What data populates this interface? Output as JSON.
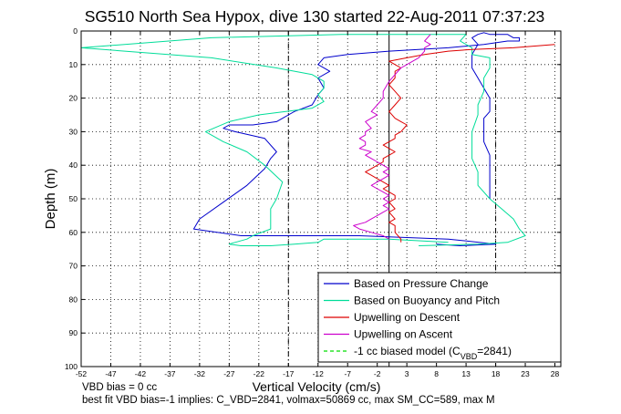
{
  "chart_data": {
    "type": "line",
    "title": "SG510 North Sea Hypox, dive 130 started 22-Aug-2011 07:37:23",
    "xlabel": "Vertical Velocity (cm/s)",
    "ylabel": "Depth (m)",
    "xlim": [
      -52,
      29
    ],
    "ylim": [
      0,
      100
    ],
    "y_reversed": true,
    "grid": true,
    "x_ticks": [
      -52,
      -47,
      -42,
      -37,
      -32,
      -27,
      -22,
      -17,
      -12,
      -7,
      -2,
      3,
      8,
      13,
      18,
      23,
      28
    ],
    "y_ticks": [
      0,
      10,
      20,
      30,
      40,
      50,
      60,
      70,
      80,
      90,
      100
    ],
    "vertical_lines": [
      {
        "x": -17,
        "style": "dashdot"
      },
      {
        "x": 18,
        "style": "dashdot"
      },
      {
        "x": 0,
        "style": "solid"
      }
    ],
    "legend_position": "bottom-right",
    "series": [
      {
        "name": "Based on Pressure Change",
        "color": "#0000cc",
        "x": [
          8,
          12,
          18,
          10,
          -5,
          -25,
          -33,
          -32,
          -28,
          -24,
          -21,
          -20,
          -19,
          -21,
          -26,
          -28,
          -27,
          -23,
          -19,
          -17,
          -16,
          -13,
          -12,
          -11,
          -12,
          -10,
          -12,
          -11,
          -7,
          0,
          10,
          16,
          20,
          22,
          22,
          21,
          20,
          19,
          17,
          16,
          15,
          14,
          15,
          14,
          14,
          14,
          15,
          16,
          17,
          17,
          17,
          16,
          16,
          16,
          17,
          17,
          17
        ],
        "y": [
          63.5,
          64,
          63.5,
          62,
          61,
          61,
          59,
          56,
          51,
          46,
          41,
          38,
          36,
          32,
          30,
          29,
          28,
          28,
          27,
          25,
          24,
          22,
          19,
          17,
          14,
          12,
          10,
          8,
          7,
          6,
          5,
          4,
          3,
          3,
          2,
          2,
          1,
          1,
          1,
          0.5,
          1,
          2,
          4,
          7,
          8,
          11,
          14,
          17,
          20,
          21,
          24,
          26,
          30,
          33,
          37,
          43,
          50
        ]
      },
      {
        "name": "Based on Buoyancy and Pitch",
        "color": "#00dd99",
        "x": [
          5,
          15,
          20,
          23,
          22,
          21,
          19,
          17,
          15,
          15,
          14,
          14,
          14,
          15,
          15,
          16,
          16,
          17,
          17,
          17,
          14,
          14,
          12,
          13,
          -8,
          -30,
          -52,
          -30,
          -19,
          -13,
          -11,
          -11,
          -12,
          -11,
          -13,
          -22,
          -27,
          -31,
          -28,
          -24,
          -21,
          -18,
          -19,
          -20,
          -20,
          -20,
          -23,
          -24,
          -26,
          -27,
          -25,
          -20,
          -16,
          -12,
          -11,
          0,
          10
        ],
        "y": [
          64,
          63.5,
          63,
          61,
          59,
          56,
          53,
          50,
          46,
          42,
          38,
          34,
          30,
          25,
          22,
          18,
          14,
          11,
          9,
          8,
          7,
          5,
          3,
          1,
          1,
          2,
          5,
          8,
          11,
          13,
          15,
          17,
          19,
          21,
          23,
          25,
          27,
          30,
          33,
          36,
          40,
          45,
          50,
          53,
          56,
          59,
          61,
          62,
          63,
          63.5,
          64,
          64,
          63.5,
          63,
          62,
          62,
          63
        ]
      },
      {
        "name": "Upwelling on Descent",
        "color": "#dd0000",
        "x": [
          28,
          21,
          14,
          10,
          6,
          3,
          0,
          1,
          2,
          1,
          1,
          0,
          1,
          2,
          1,
          0,
          1,
          2,
          3,
          2,
          1,
          1,
          0,
          -1,
          0,
          1,
          0,
          -1,
          -1,
          -2,
          -3,
          -4,
          -3,
          -2,
          -1,
          0,
          -1,
          0,
          1,
          1,
          0,
          1,
          0,
          1,
          0,
          1,
          1,
          2,
          2
        ],
        "y": [
          4,
          5,
          5.5,
          6,
          7,
          8,
          9,
          10,
          11,
          12,
          14,
          16,
          18,
          20,
          22,
          24,
          26,
          27,
          28,
          30,
          31,
          32,
          33,
          34,
          35,
          36,
          37,
          38,
          39,
          40,
          41,
          42,
          43,
          44,
          45,
          46,
          47,
          48,
          49,
          50,
          51,
          53,
          54,
          56,
          57,
          58,
          60,
          62,
          63
        ]
      },
      {
        "name": "Upwelling on Ascent",
        "color": "#cc00cc",
        "x": [
          0,
          -1,
          -3,
          -5,
          -6,
          -4,
          -3,
          -2,
          -1,
          0,
          -1,
          0,
          -1,
          0,
          -1,
          -2,
          -3,
          -2,
          -1,
          0,
          -1,
          0,
          -1,
          -2,
          -3,
          -4,
          -3,
          -5,
          -4,
          -4,
          -5,
          -4,
          -4,
          -3,
          -4,
          -3,
          -2,
          -3,
          -2,
          -1,
          -1,
          0,
          1,
          2,
          3,
          4,
          5,
          6,
          6,
          7,
          6,
          7
        ],
        "y": [
          62,
          61,
          60,
          59,
          58,
          57,
          56,
          55,
          54,
          53,
          52,
          51,
          50,
          49,
          48,
          47,
          46,
          45,
          44,
          43,
          42,
          41,
          40,
          39,
          38,
          37,
          36,
          35,
          34,
          33,
          32,
          31,
          30,
          29,
          27,
          26,
          25,
          24,
          22,
          20,
          18,
          15,
          13,
          11,
          10,
          9,
          8,
          6,
          5,
          4,
          3,
          1
        ]
      },
      {
        "name": "-1 cc biased model (C_VBD=2841)",
        "color": "#00dd00",
        "style": "dashed",
        "x": [],
        "y": []
      }
    ],
    "legend": [
      {
        "label": "Based on Pressure Change",
        "color": "#0000cc",
        "style": "solid"
      },
      {
        "label": "Based on Buoyancy and Pitch",
        "color": "#00dd99",
        "style": "solid"
      },
      {
        "label": "Upwelling on Descent",
        "color": "#dd0000",
        "style": "solid"
      },
      {
        "label": "Upwelling on Ascent",
        "color": "#cc00cc",
        "style": "solid"
      },
      {
        "label": "-1 cc biased model (C",
        "sub": "VBD",
        "suffix": "=2841)",
        "color": "#00dd00",
        "style": "dashed"
      }
    ]
  },
  "notes": {
    "line1": "VBD bias = 0 cc",
    "line2": "best fit VBD bias=-1 implies: C_VBD=2841, volmax=50869 cc, max SM_CC=589, max M"
  }
}
